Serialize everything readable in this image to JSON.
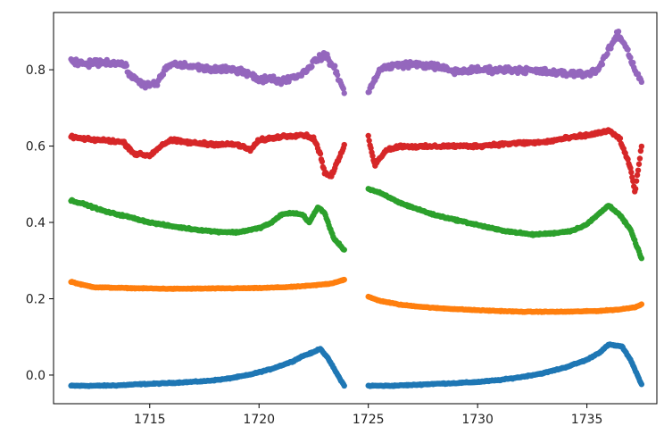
{
  "chart_data": {
    "type": "scatter",
    "title": "",
    "xlabel": "",
    "ylabel": "",
    "xlim": [
      1710.6,
      1738.2
    ],
    "ylim": [
      -0.075,
      0.95
    ],
    "grid": false,
    "legend": "none",
    "x_ticks": [
      1715,
      1720,
      1725,
      1730,
      1735
    ],
    "x_tick_labels": [
      "1715",
      "1720",
      "1725",
      "1730",
      "1735"
    ],
    "y_ticks": [
      0.0,
      0.2,
      0.4,
      0.6,
      0.8
    ],
    "y_tick_labels": [
      "0.0",
      "0.2",
      "0.4",
      "0.6",
      "0.8"
    ],
    "segments": [
      [
        1711.4,
        1723.9
      ],
      [
        1725.0,
        1737.5
      ]
    ],
    "series": [
      {
        "color": "#1f77b4",
        "noise": 0.002,
        "points": [
          [
            1711.4,
            -0.028
          ],
          [
            1712.5,
            -0.028
          ],
          [
            1713.5,
            -0.027
          ],
          [
            1714.5,
            -0.024
          ],
          [
            1715.5,
            -0.022
          ],
          [
            1716.5,
            -0.019
          ],
          [
            1717.5,
            -0.016
          ],
          [
            1718.5,
            -0.01
          ],
          [
            1719.5,
            0.0
          ],
          [
            1720.5,
            0.015
          ],
          [
            1721.5,
            0.035
          ],
          [
            1722.0,
            0.05
          ],
          [
            1722.5,
            0.06
          ],
          [
            1722.8,
            0.07
          ],
          [
            1723.2,
            0.04
          ],
          [
            1723.6,
            0.0
          ],
          [
            1723.9,
            -0.028
          ],
          [
            1725.0,
            -0.028
          ],
          [
            1726.0,
            -0.028
          ],
          [
            1727.0,
            -0.026
          ],
          [
            1728.0,
            -0.023
          ],
          [
            1729.0,
            -0.021
          ],
          [
            1730.0,
            -0.018
          ],
          [
            1731.0,
            -0.013
          ],
          [
            1732.0,
            -0.005
          ],
          [
            1733.0,
            0.005
          ],
          [
            1734.0,
            0.02
          ],
          [
            1735.0,
            0.04
          ],
          [
            1735.6,
            0.06
          ],
          [
            1736.0,
            0.08
          ],
          [
            1736.6,
            0.075
          ],
          [
            1737.0,
            0.04
          ],
          [
            1737.5,
            -0.025
          ]
        ]
      },
      {
        "color": "#ff7f0e",
        "noise": 0.0015,
        "points": [
          [
            1711.4,
            0.245
          ],
          [
            1711.8,
            0.238
          ],
          [
            1712.5,
            0.23
          ],
          [
            1714.0,
            0.228
          ],
          [
            1716.0,
            0.226
          ],
          [
            1718.0,
            0.227
          ],
          [
            1720.0,
            0.228
          ],
          [
            1721.5,
            0.231
          ],
          [
            1722.5,
            0.235
          ],
          [
            1723.3,
            0.24
          ],
          [
            1723.9,
            0.25
          ],
          [
            1725.0,
            0.205
          ],
          [
            1725.5,
            0.195
          ],
          [
            1726.5,
            0.184
          ],
          [
            1728.0,
            0.176
          ],
          [
            1730.0,
            0.17
          ],
          [
            1732.0,
            0.166
          ],
          [
            1734.0,
            0.166
          ],
          [
            1735.5,
            0.168
          ],
          [
            1736.5,
            0.172
          ],
          [
            1737.2,
            0.178
          ],
          [
            1737.5,
            0.185
          ]
        ]
      },
      {
        "color": "#2ca02c",
        "noise": 0.003,
        "points": [
          [
            1711.4,
            0.458
          ],
          [
            1712.0,
            0.448
          ],
          [
            1713.0,
            0.428
          ],
          [
            1714.0,
            0.415
          ],
          [
            1715.0,
            0.4
          ],
          [
            1716.0,
            0.39
          ],
          [
            1717.0,
            0.382
          ],
          [
            1718.0,
            0.376
          ],
          [
            1719.0,
            0.374
          ],
          [
            1720.0,
            0.385
          ],
          [
            1720.6,
            0.4
          ],
          [
            1721.0,
            0.42
          ],
          [
            1721.5,
            0.425
          ],
          [
            1722.0,
            0.42
          ],
          [
            1722.3,
            0.4
          ],
          [
            1722.7,
            0.44
          ],
          [
            1723.0,
            0.425
          ],
          [
            1723.4,
            0.36
          ],
          [
            1723.9,
            0.328
          ],
          [
            1725.0,
            0.488
          ],
          [
            1725.5,
            0.478
          ],
          [
            1726.5,
            0.45
          ],
          [
            1728.0,
            0.42
          ],
          [
            1729.5,
            0.4
          ],
          [
            1731.0,
            0.38
          ],
          [
            1732.5,
            0.368
          ],
          [
            1733.5,
            0.372
          ],
          [
            1734.3,
            0.378
          ],
          [
            1735.0,
            0.395
          ],
          [
            1735.5,
            0.42
          ],
          [
            1736.0,
            0.445
          ],
          [
            1736.5,
            0.42
          ],
          [
            1737.0,
            0.38
          ],
          [
            1737.5,
            0.305
          ]
        ]
      },
      {
        "color": "#d62728",
        "noise": 0.006,
        "points": [
          [
            1711.4,
            0.625
          ],
          [
            1712.0,
            0.618
          ],
          [
            1713.0,
            0.615
          ],
          [
            1713.8,
            0.61
          ],
          [
            1714.3,
            0.58
          ],
          [
            1715.0,
            0.575
          ],
          [
            1715.6,
            0.605
          ],
          [
            1716.0,
            0.615
          ],
          [
            1717.0,
            0.608
          ],
          [
            1718.0,
            0.605
          ],
          [
            1719.0,
            0.604
          ],
          [
            1719.6,
            0.59
          ],
          [
            1720.0,
            0.615
          ],
          [
            1721.0,
            0.625
          ],
          [
            1722.0,
            0.63
          ],
          [
            1722.5,
            0.62
          ],
          [
            1722.8,
            0.58
          ],
          [
            1723.0,
            0.53
          ],
          [
            1723.3,
            0.52
          ],
          [
            1723.6,
            0.56
          ],
          [
            1723.9,
            0.6
          ],
          [
            1725.0,
            0.625
          ],
          [
            1725.3,
            0.55
          ],
          [
            1725.8,
            0.59
          ],
          [
            1726.5,
            0.6
          ],
          [
            1727.5,
            0.598
          ],
          [
            1728.5,
            0.6
          ],
          [
            1730.0,
            0.6
          ],
          [
            1731.0,
            0.605
          ],
          [
            1732.0,
            0.608
          ],
          [
            1733.0,
            0.61
          ],
          [
            1734.0,
            0.62
          ],
          [
            1735.0,
            0.628
          ],
          [
            1736.0,
            0.64
          ],
          [
            1736.5,
            0.62
          ],
          [
            1737.0,
            0.54
          ],
          [
            1737.2,
            0.48
          ],
          [
            1737.5,
            0.6
          ]
        ]
      },
      {
        "color": "#9467bd",
        "noise": 0.012,
        "points": [
          [
            1711.4,
            0.82
          ],
          [
            1712.0,
            0.815
          ],
          [
            1713.0,
            0.82
          ],
          [
            1713.8,
            0.815
          ],
          [
            1714.2,
            0.78
          ],
          [
            1714.8,
            0.76
          ],
          [
            1715.3,
            0.76
          ],
          [
            1715.7,
            0.8
          ],
          [
            1716.0,
            0.815
          ],
          [
            1717.0,
            0.808
          ],
          [
            1718.0,
            0.8
          ],
          [
            1719.0,
            0.8
          ],
          [
            1719.6,
            0.79
          ],
          [
            1720.0,
            0.77
          ],
          [
            1720.5,
            0.78
          ],
          [
            1721.0,
            0.77
          ],
          [
            1721.5,
            0.78
          ],
          [
            1722.0,
            0.79
          ],
          [
            1722.5,
            0.82
          ],
          [
            1723.0,
            0.84
          ],
          [
            1723.5,
            0.8
          ],
          [
            1723.9,
            0.74
          ],
          [
            1725.0,
            0.74
          ],
          [
            1725.5,
            0.8
          ],
          [
            1726.0,
            0.81
          ],
          [
            1727.0,
            0.815
          ],
          [
            1728.0,
            0.81
          ],
          [
            1729.0,
            0.795
          ],
          [
            1730.0,
            0.8
          ],
          [
            1731.0,
            0.8
          ],
          [
            1732.0,
            0.8
          ],
          [
            1733.0,
            0.795
          ],
          [
            1734.0,
            0.79
          ],
          [
            1735.0,
            0.79
          ],
          [
            1735.5,
            0.8
          ],
          [
            1736.0,
            0.85
          ],
          [
            1736.4,
            0.895
          ],
          [
            1736.8,
            0.86
          ],
          [
            1737.2,
            0.8
          ],
          [
            1737.5,
            0.77
          ]
        ]
      }
    ]
  }
}
